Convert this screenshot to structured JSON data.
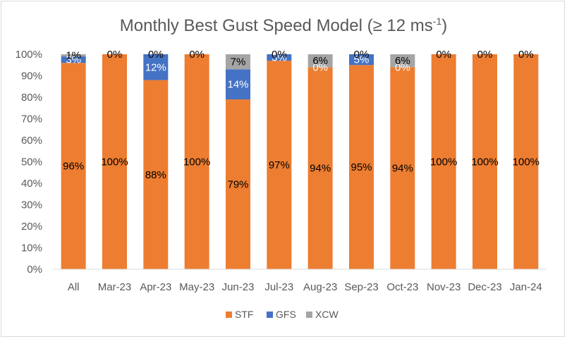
{
  "chart_data": {
    "type": "bar",
    "stacked": true,
    "title": "Monthly Best Gust Speed Model (≥ 12 ms",
    "title_superscript": "-1",
    "title_suffix": ")",
    "categories": [
      "All",
      "Mar-23",
      "Apr-23",
      "May-23",
      "Jun-23",
      "Jul-23",
      "Aug-23",
      "Sep-23",
      "Oct-23",
      "Nov-23",
      "Dec-23",
      "Jan-24"
    ],
    "series": [
      {
        "name": "STF",
        "color": "#ED7D31",
        "values": [
          96,
          100,
          88,
          100,
          79,
          97,
          94,
          95,
          94,
          100,
          100,
          100
        ],
        "labels": [
          "96%",
          "100%",
          "88%",
          "100%",
          "79%",
          "97%",
          "94%",
          "95%",
          "94%",
          "100%",
          "100%",
          "100%"
        ],
        "label_color": "#000000"
      },
      {
        "name": "GFS",
        "color": "#4472C4",
        "values": [
          3,
          0,
          12,
          0,
          14,
          3,
          0,
          5,
          0,
          0,
          0,
          0
        ],
        "labels": [
          "3%",
          "",
          "12%",
          "",
          "14%",
          "3%",
          "0%",
          "5%",
          "0%",
          "",
          "",
          ""
        ],
        "label_color": "#ffffff"
      },
      {
        "name": "XCW",
        "color": "#A5A5A5",
        "values": [
          1,
          0,
          0,
          0,
          7,
          0,
          6,
          0,
          6,
          0,
          0,
          0
        ],
        "labels": [
          "1%",
          "0%",
          "0%",
          "0%",
          "7%",
          "0%",
          "6%",
          "0%",
          "6%",
          "0%",
          "0%",
          "0%"
        ],
        "label_color": "#000000"
      }
    ],
    "y_ticks": [
      "0%",
      "10%",
      "20%",
      "30%",
      "40%",
      "50%",
      "60%",
      "70%",
      "80%",
      "90%",
      "100%"
    ],
    "ylim": [
      0,
      100
    ],
    "grid": false,
    "legend_position": "bottom"
  }
}
